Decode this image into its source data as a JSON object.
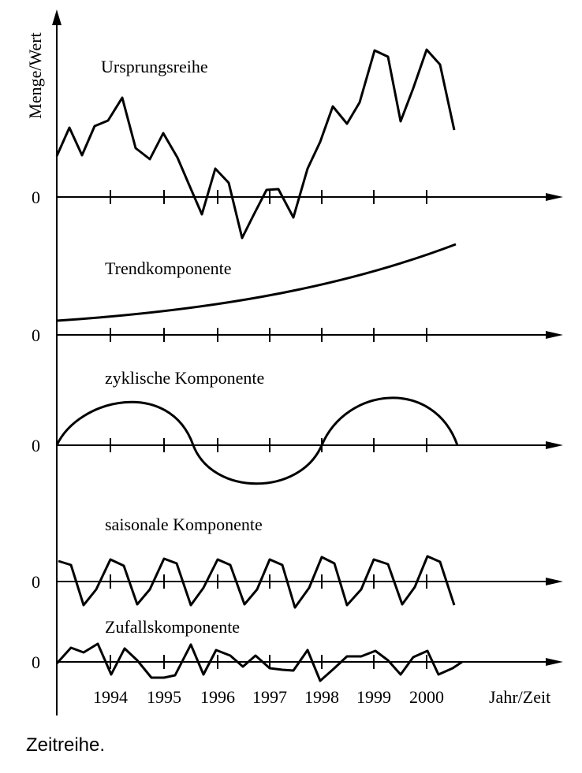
{
  "axis_label": "Menge/Wert",
  "panels": [
    {
      "title": "Ursprungsreihe",
      "zero_label": "0"
    },
    {
      "title": "Trendkomponente",
      "zero_label": "0"
    },
    {
      "title": "zyklische Komponente",
      "zero_label": "0"
    },
    {
      "title": "saisonale Komponente",
      "zero_label": "0"
    },
    {
      "title": "Zufallskomponente",
      "zero_label": "0"
    }
  ],
  "x_labels": [
    "1994",
    "1995",
    "1996",
    "1997",
    "1998",
    "1999",
    "2000"
  ],
  "x_axis_label": "Jahr/Zeit",
  "caption": "Zeitreihe."
}
